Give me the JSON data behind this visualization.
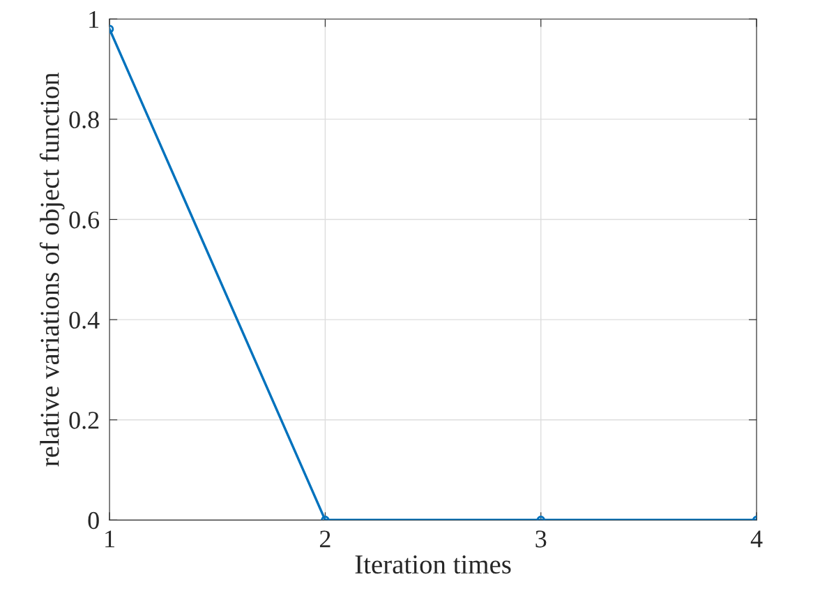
{
  "chart_data": {
    "type": "line",
    "xlabel": "Iteration times",
    "ylabel": "relative variations of object function",
    "x": [
      1,
      2,
      3,
      4
    ],
    "series": [
      {
        "color": "#0072bd",
        "values": [
          0.98,
          0,
          0,
          0
        ]
      }
    ],
    "xlim": [
      1,
      4
    ],
    "xticks": [
      1,
      2,
      3,
      4
    ],
    "ylim": [
      0,
      1
    ],
    "yticks": [
      0,
      0.2,
      0.4,
      0.6,
      0.8,
      1
    ],
    "grid": true,
    "marker": "circle",
    "line_style": "solid"
  }
}
